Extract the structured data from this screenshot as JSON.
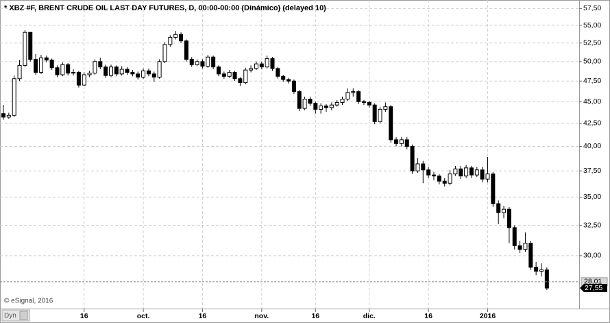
{
  "chart_data": {
    "type": "candlestick",
    "title": "* XBZ #F, BRENT CRUDE OIL LAST DAY FUTURES, D, 00:00-00:00 (Dinámico) (delayed 10)",
    "copyright": "© eSignal, 2016",
    "button": "Dyn",
    "log_scale": true,
    "grid": true,
    "up_color": "#ffffff",
    "down_color": "#000000",
    "categories": [
      null,
      null,
      null,
      null,
      null,
      null,
      null,
      null,
      null,
      null,
      null,
      null,
      null,
      null,
      null,
      "16",
      null,
      null,
      null,
      null,
      null,
      null,
      null,
      null,
      null,
      null,
      "oct.",
      null,
      null,
      null,
      null,
      null,
      null,
      null,
      null,
      null,
      null,
      "16",
      null,
      null,
      null,
      null,
      null,
      null,
      null,
      null,
      null,
      null,
      "nov.",
      null,
      null,
      null,
      null,
      null,
      null,
      null,
      null,
      null,
      "16",
      null,
      null,
      null,
      null,
      null,
      null,
      null,
      null,
      null,
      "dic.",
      null,
      null,
      null,
      null,
      null,
      null,
      null,
      null,
      null,
      null,
      "16",
      null,
      null,
      null,
      null,
      null,
      null,
      null,
      null,
      null,
      null,
      "2016",
      null,
      null,
      null,
      null,
      null,
      null,
      null,
      null,
      null,
      null,
      null
    ],
    "open": [
      43.6,
      43.2,
      43.4,
      47.8,
      49.5,
      54.0,
      50.3,
      48.6,
      50.5,
      50.2,
      49.2,
      48.3,
      49.6,
      48.5,
      48.6,
      47.0,
      48.3,
      48.5,
      50.0,
      49.3,
      48.2,
      49.3,
      48.4,
      49.0,
      48.6,
      48.4,
      48.0,
      48.8,
      48.4,
      48.0,
      50.0,
      52.3,
      53.3,
      53.7,
      52.8,
      50.3,
      49.6,
      50.0,
      49.4,
      50.6,
      49.3,
      48.4,
      48.1,
      48.6,
      47.8,
      47.3,
      48.9,
      49.1,
      49.7,
      49.3,
      50.4,
      49.1,
      48.1,
      47.7,
      47.5,
      46.2,
      44.2,
      45.3,
      44.8,
      44.1,
      44.5,
      44.3,
      44.6,
      44.9,
      45.3,
      46.1,
      46.2,
      45.0,
      44.9,
      44.6,
      42.7,
      44.1,
      44.4,
      40.7,
      40.3,
      40.7,
      40.0,
      37.5,
      38.2,
      37.6,
      37.1,
      37.0,
      36.5,
      36.3,
      37.2,
      37.7,
      37.0,
      37.8,
      37.1,
      37.6,
      36.7,
      37.2,
      34.4,
      33.6,
      33.9,
      32.3,
      30.8,
      30.5,
      31.0,
      29.1,
      28.8,
      28.9
    ],
    "high": [
      44.6,
      43.7,
      48.2,
      50.2,
      54.3,
      54.0,
      51.0,
      50.9,
      50.8,
      50.4,
      49.5,
      49.9,
      49.8,
      49.0,
      48.8,
      48.6,
      48.8,
      50.3,
      50.5,
      49.6,
      49.6,
      49.5,
      49.4,
      49.3,
      48.9,
      48.7,
      49.1,
      49.1,
      48.7,
      50.3,
      52.6,
      53.6,
      54.2,
      54.0,
      53.0,
      50.6,
      50.3,
      50.3,
      50.9,
      50.8,
      49.5,
      48.7,
      48.9,
      48.8,
      48.0,
      49.2,
      49.5,
      50.0,
      50.0,
      50.8,
      50.6,
      49.3,
      48.3,
      47.9,
      47.7,
      46.4,
      45.6,
      45.6,
      45.0,
      44.8,
      44.7,
      44.9,
      45.2,
      45.6,
      46.6,
      46.6,
      46.4,
      45.2,
      45.1,
      44.8,
      44.4,
      44.9,
      44.6,
      41.0,
      41.0,
      41.0,
      40.2,
      38.8,
      38.5,
      37.9,
      37.4,
      37.2,
      36.8,
      37.6,
      38.0,
      38.0,
      38.1,
      38.0,
      37.9,
      37.9,
      38.9,
      37.4,
      34.7,
      34.2,
      34.1,
      32.5,
      31.2,
      31.9,
      31.2,
      29.5,
      29.4,
      29.1
    ],
    "low": [
      42.9,
      43.0,
      43.2,
      47.5,
      49.3,
      50.0,
      48.3,
      48.4,
      49.9,
      48.9,
      48.0,
      48.1,
      48.2,
      48.2,
      46.7,
      46.9,
      48.0,
      48.3,
      49.0,
      47.9,
      48.0,
      48.1,
      48.2,
      48.3,
      48.1,
      47.7,
      47.8,
      48.1,
      47.4,
      47.8,
      49.8,
      52.0,
      53.0,
      52.5,
      50.0,
      49.3,
      49.4,
      49.1,
      49.2,
      49.0,
      48.1,
      47.8,
      47.9,
      47.5,
      46.9,
      47.1,
      48.6,
      48.9,
      49.0,
      49.1,
      48.8,
      47.8,
      47.4,
      47.2,
      45.9,
      43.9,
      44.0,
      44.5,
      43.6,
      43.6,
      43.8,
      44.0,
      44.4,
      44.6,
      45.1,
      45.6,
      44.7,
      44.6,
      44.3,
      42.4,
      42.5,
      43.8,
      40.4,
      40.0,
      40.0,
      39.7,
      37.2,
      37.3,
      36.3,
      36.8,
      36.6,
      36.2,
      36.0,
      36.1,
      37.0,
      36.7,
      36.8,
      36.8,
      36.9,
      36.4,
      36.4,
      34.1,
      32.6,
      33.1,
      31.0,
      30.5,
      30.2,
      30.3,
      28.9,
      28.5,
      28.4,
      27.4
    ],
    "close": [
      43.2,
      43.4,
      47.8,
      49.5,
      54.0,
      50.3,
      48.6,
      50.5,
      50.2,
      49.2,
      48.3,
      49.6,
      48.5,
      48.6,
      47.0,
      48.3,
      48.5,
      50.0,
      49.3,
      48.2,
      49.3,
      48.4,
      49.0,
      48.6,
      48.4,
      48.0,
      48.8,
      48.4,
      48.0,
      50.0,
      52.3,
      53.3,
      53.7,
      52.8,
      50.3,
      49.6,
      50.0,
      49.4,
      50.6,
      49.3,
      48.4,
      48.1,
      48.6,
      47.8,
      47.3,
      48.9,
      49.1,
      49.7,
      49.3,
      50.4,
      49.1,
      48.1,
      47.7,
      47.5,
      46.2,
      44.2,
      45.3,
      44.8,
      44.1,
      44.5,
      44.3,
      44.6,
      44.9,
      45.3,
      46.1,
      46.2,
      45.0,
      44.9,
      44.6,
      42.7,
      44.1,
      44.4,
      40.7,
      40.3,
      40.7,
      40.0,
      37.5,
      38.2,
      37.6,
      37.1,
      37.0,
      36.5,
      36.3,
      37.2,
      37.7,
      37.0,
      37.8,
      37.1,
      37.6,
      36.7,
      37.2,
      34.4,
      33.6,
      33.9,
      32.3,
      30.8,
      30.5,
      31.0,
      29.1,
      28.8,
      28.9,
      27.55
    ],
    "ylim": [
      26.1,
      58.8
    ],
    "yticks": [
      {
        "value": 57.5,
        "label": "57,50"
      },
      {
        "value": 55,
        "label": "55,00"
      },
      {
        "value": 52.5,
        "label": "52,50"
      },
      {
        "value": 50,
        "label": "50,00"
      },
      {
        "value": 47.5,
        "label": "47,50"
      },
      {
        "value": 45,
        "label": "45,00"
      },
      {
        "value": 42.5,
        "label": "42,50"
      },
      {
        "value": 40,
        "label": "40,00"
      },
      {
        "value": 37.5,
        "label": "37,50"
      },
      {
        "value": 35,
        "label": "35,00"
      },
      {
        "value": 32.5,
        "label": "32,50"
      },
      {
        "value": 30,
        "label": "30,00"
      }
    ],
    "reference_line": {
      "value": 28.01,
      "label": "28,01"
    },
    "last_price": {
      "value": 27.55,
      "label": "27,55"
    }
  }
}
